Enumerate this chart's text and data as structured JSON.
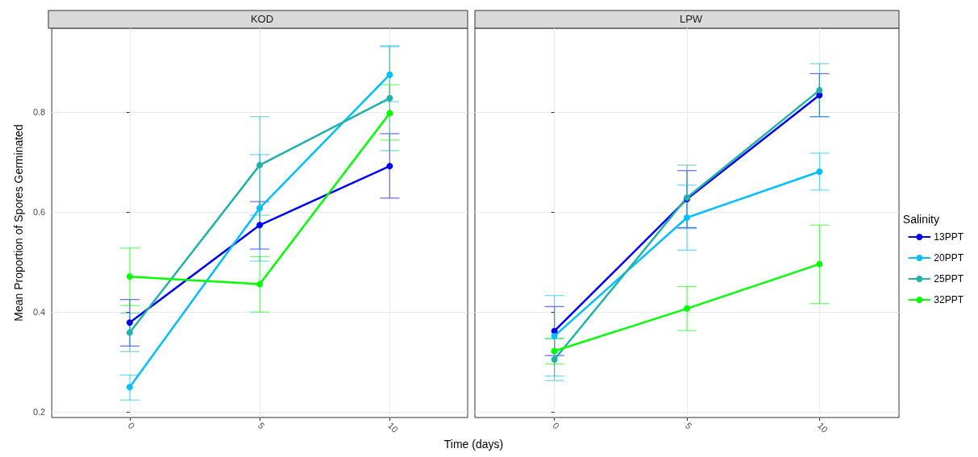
{
  "chart_data": [
    {
      "type": "line",
      "title": "KOD",
      "xlabel": "Time (days)",
      "ylabel": "Mean Proportion of Spores Germinated",
      "x": [
        0,
        5,
        10
      ],
      "xlim": [
        -3,
        13
      ],
      "xticks": [
        0,
        5,
        10
      ],
      "ylim": [
        0.189,
        0.968
      ],
      "yticks": [
        0.2,
        0.4,
        0.6,
        0.8
      ],
      "grid": true,
      "marker": "circle",
      "line_style": "solid",
      "series": [
        {
          "color": "#0000ff",
          "values": [
            0.379,
            0.574,
            0.692
          ],
          "errors": [
            [
              0.332,
              0.425
            ],
            [
              0.526,
              0.621
            ],
            [
              0.628,
              0.757
            ]
          ]
        },
        {
          "color": "#00bfff",
          "values": [
            0.25,
            0.608,
            0.875
          ],
          "errors": [
            [
              0.224,
              0.274
            ],
            [
              0.502,
              0.715
            ],
            [
              0.821,
              0.933
            ]
          ]
        },
        {
          "color": "#20b2aa",
          "values": [
            0.359,
            0.694,
            0.828
          ],
          "errors": [
            [
              0.321,
              0.398
            ],
            [
              0.594,
              0.791
            ],
            [
              0.723,
              0.931
            ]
          ]
        },
        {
          "color": "#00ff00",
          "values": [
            0.471,
            0.456,
            0.798
          ],
          "errors": [
            [
              0.413,
              0.528
            ],
            [
              0.4,
              0.511
            ],
            [
              0.744,
              0.855
            ]
          ]
        }
      ]
    },
    {
      "type": "line",
      "title": "LPW",
      "legend_title": "Salinity",
      "legend": "right",
      "tick_labels": "x",
      "x": [
        0,
        5,
        10
      ],
      "xlim": [
        -3,
        13
      ],
      "xticks": [
        0,
        5,
        10
      ],
      "ylim": [
        0.189,
        0.968
      ],
      "yticks": [
        0.2,
        0.4,
        0.6,
        0.8
      ],
      "grid": true,
      "marker": "circle",
      "line_style": "solid",
      "series": [
        {
          "name": "13PPT",
          "color": "#0000ff",
          "values": [
            0.362,
            0.626,
            0.834
          ],
          "errors": [
            [
              0.313,
              0.411
            ],
            [
              0.569,
              0.683
            ],
            [
              0.791,
              0.877
            ]
          ]
        },
        {
          "name": "20PPT",
          "color": "#00bfff",
          "values": [
            0.352,
            0.589,
            0.681
          ],
          "errors": [
            [
              0.272,
              0.433
            ],
            [
              0.524,
              0.654
            ],
            [
              0.644,
              0.718
            ]
          ]
        },
        {
          "name": "25PPT",
          "color": "#20b2aa",
          "values": [
            0.305,
            0.629,
            0.844
          ],
          "errors": [
            [
              0.263,
              0.347
            ],
            [
              0.567,
              0.694
            ],
            [
              0.791,
              0.897
            ]
          ]
        },
        {
          "name": "32PPT",
          "color": "#00ff00",
          "values": [
            0.322,
            0.407,
            0.496
          ],
          "errors": [
            [
              0.296,
              0.347
            ],
            [
              0.363,
              0.451
            ],
            [
              0.417,
              0.574
            ]
          ]
        }
      ]
    }
  ]
}
